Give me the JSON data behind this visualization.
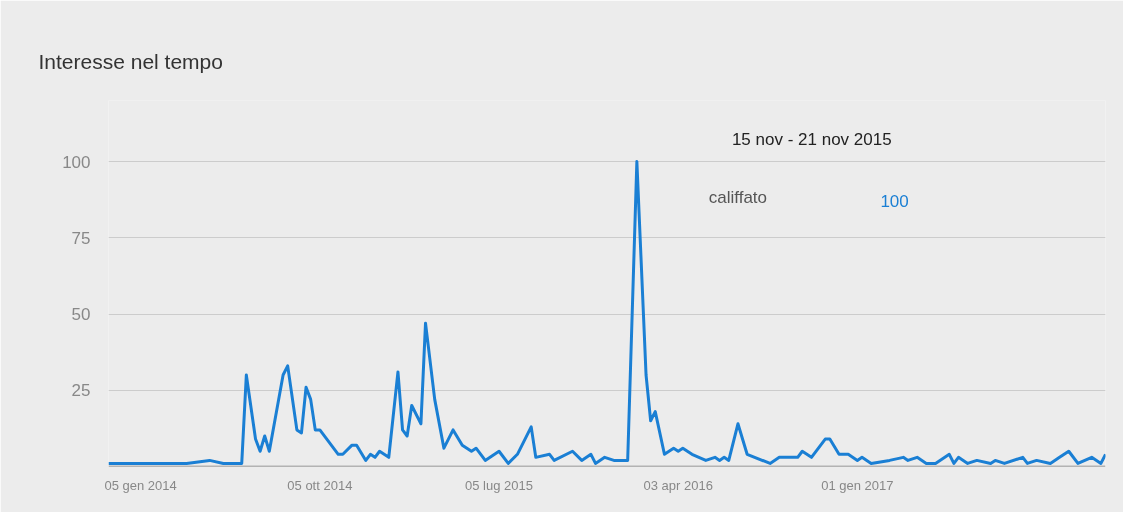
{
  "chart_data": {
    "type": "line",
    "title": "Interesse nel tempo",
    "x": [
      "2013-11-17",
      "2013-12-15",
      "2014-01-05",
      "2014-02-09",
      "2014-03-16",
      "2014-04-20",
      "2014-05-11",
      "2014-06-08",
      "2014-06-15",
      "2014-06-29",
      "2014-07-06",
      "2014-07-13",
      "2014-07-20",
      "2014-08-10",
      "2014-08-17",
      "2014-08-31",
      "2014-09-07",
      "2014-09-14",
      "2014-09-21",
      "2014-09-28",
      "2014-10-05",
      "2014-11-02",
      "2014-11-09",
      "2014-11-23",
      "2014-11-30",
      "2014-12-14",
      "2014-12-21",
      "2014-12-28",
      "2015-01-04",
      "2015-01-18",
      "2015-02-01",
      "2015-02-08",
      "2015-02-15",
      "2015-02-22",
      "2015-03-08",
      "2015-03-15",
      "2015-03-29",
      "2015-04-12",
      "2015-04-26",
      "2015-05-10",
      "2015-05-24",
      "2015-05-31",
      "2015-06-14",
      "2015-07-05",
      "2015-07-19",
      "2015-08-02",
      "2015-08-23",
      "2015-08-30",
      "2015-09-20",
      "2015-09-27",
      "2015-10-25",
      "2015-11-08",
      "2015-11-22",
      "2015-11-29",
      "2015-12-13",
      "2015-12-27",
      "2016-01-17",
      "2016-01-31",
      "2016-02-14",
      "2016-02-21",
      "2016-02-28",
      "2016-03-13",
      "2016-03-27",
      "2016-04-03",
      "2016-04-10",
      "2016-04-24",
      "2016-05-15",
      "2016-05-29",
      "2016-06-05",
      "2016-06-12",
      "2016-06-19",
      "2016-07-03",
      "2016-07-17",
      "2016-08-21",
      "2016-09-04",
      "2016-10-02",
      "2016-10-09",
      "2016-10-23",
      "2016-11-13",
      "2016-11-20",
      "2016-12-04",
      "2016-12-18",
      "2017-01-01",
      "2017-01-08",
      "2017-01-22",
      "2017-02-19",
      "2017-03-12",
      "2017-03-19",
      "2017-04-02",
      "2017-04-16",
      "2017-04-30",
      "2017-05-21",
      "2017-05-28",
      "2017-06-04",
      "2017-06-18",
      "2017-07-02",
      "2017-07-23",
      "2017-07-30",
      "2017-08-13",
      "2017-09-10",
      "2017-09-17",
      "2017-10-01",
      "2017-10-22",
      "2017-11-05",
      "2017-11-19",
      "2017-12-03",
      "2017-12-24",
      "2018-01-07",
      "2018-01-14"
    ],
    "series": [
      {
        "name": "califfato",
        "color": "#1a7fd4",
        "values": [
          1,
          1,
          1,
          1,
          1,
          2,
          1,
          1,
          30,
          9,
          5,
          10,
          5,
          30,
          33,
          12,
          11,
          26,
          22,
          12,
          12,
          4,
          4,
          7,
          7,
          2,
          4,
          3,
          5,
          3,
          31,
          12,
          10,
          20,
          14,
          47,
          22,
          6,
          12,
          7,
          5,
          6,
          2,
          5,
          1,
          4,
          13,
          3,
          4,
          2,
          5,
          2,
          4,
          1,
          3,
          2,
          2,
          100,
          30,
          15,
          18,
          4,
          6,
          5,
          6,
          4,
          2,
          3,
          2,
          3,
          2,
          14,
          4,
          1,
          3,
          3,
          5,
          3,
          9,
          9,
          4,
          4,
          2,
          3,
          1,
          2,
          3,
          2,
          3,
          1,
          1,
          4,
          1,
          3,
          1,
          2,
          1,
          2,
          1,
          3,
          1,
          2,
          1,
          3,
          5,
          1,
          3,
          1,
          4
        ]
      }
    ],
    "xlim": [
      "2013-11-17",
      "2018-01-14"
    ],
    "xticks": [
      {
        "value": "2014-01-05",
        "label": "05 gen 2014"
      },
      {
        "value": "2014-10-05",
        "label": "05 ott 2014"
      },
      {
        "value": "2015-07-05",
        "label": "05 lug 2015"
      },
      {
        "value": "2016-04-03",
        "label": "03 apr 2016"
      },
      {
        "value": "2017-01-01",
        "label": "01 gen 2017"
      }
    ],
    "ylim": [
      0,
      120
    ],
    "yticks": [
      25,
      50,
      75,
      100
    ],
    "grid": "y",
    "legend": "top right",
    "annotations": [
      "15 nov - 21 nov 2015",
      "100"
    ]
  }
}
